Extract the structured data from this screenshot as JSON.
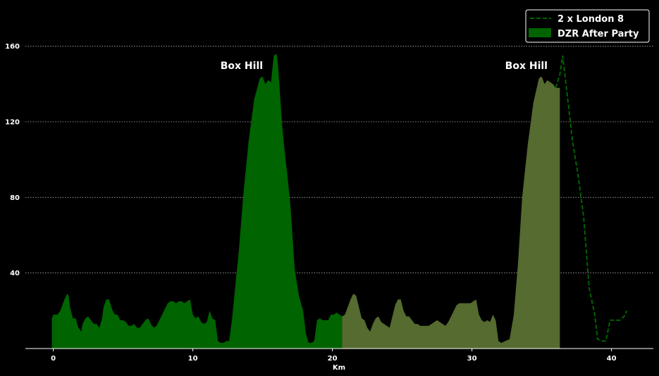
{
  "chart_data": {
    "type": "area",
    "title": "",
    "xlabel": "Km",
    "ylabel": "",
    "xlim": [
      -2,
      43
    ],
    "ylim": [
      0,
      180
    ],
    "x_ticks": [
      0,
      10,
      20,
      30,
      40
    ],
    "y_ticks": [
      40,
      80,
      120,
      160
    ],
    "grid": "horizontal-dotted",
    "legend_position": "top-right",
    "colors": {
      "background": "#000000",
      "text": "#ffffff",
      "grid": "#b0b0b0",
      "axis": "#ffffff",
      "london_line": "#006400",
      "after_party_fill": "#006400",
      "second_lap_fill": "#556b2f"
    },
    "annotations": [
      {
        "text": "Box Hill",
        "x": 13.5,
        "y": 148
      },
      {
        "text": "Box Hill",
        "x": 33.9,
        "y": 148
      }
    ],
    "series": [
      {
        "name": "2 x London 8",
        "style": "dashed-line",
        "x": [
          36.0,
          36.3,
          36.5,
          36.8,
          37.2,
          37.6,
          38.0,
          38.4,
          38.8,
          39.0,
          39.3,
          39.6,
          39.9,
          40.2,
          40.6,
          40.9,
          41.1
        ],
        "y": [
          138,
          145,
          155,
          136,
          110,
          92,
          70,
          32,
          18,
          5,
          4,
          4,
          15,
          15,
          15,
          17,
          20
        ]
      },
      {
        "name": "DZR After Party",
        "style": "filled-area",
        "x": [
          -0.1,
          0.0,
          0.3,
          0.5,
          0.8,
          1.0,
          1.1,
          1.2,
          1.4,
          1.6,
          1.8,
          2.0,
          2.1,
          2.3,
          2.5,
          2.7,
          2.9,
          3.1,
          3.3,
          3.5,
          3.6,
          3.8,
          4.0,
          4.2,
          4.4,
          4.6,
          4.8,
          5.0,
          5.2,
          5.4,
          5.6,
          5.8,
          6.0,
          6.2,
          6.4,
          6.6,
          6.8,
          7.0,
          7.2,
          7.4,
          7.6,
          7.8,
          8.0,
          8.2,
          8.4,
          8.6,
          8.8,
          9.0,
          9.2,
          9.4,
          9.6,
          9.8,
          10.0,
          10.2,
          10.4,
          10.6,
          10.8,
          11.0,
          11.2,
          11.4,
          11.6,
          11.8,
          12.0,
          12.2,
          12.4,
          12.6,
          12.8,
          13.0,
          13.3,
          13.6,
          14.0,
          14.4,
          14.8,
          15.0,
          15.2,
          15.4,
          15.6,
          15.8,
          16.0,
          16.1,
          16.2,
          16.4,
          16.6,
          16.8,
          17.0,
          17.3,
          17.6,
          17.9,
          18.1,
          18.3,
          18.5,
          18.7,
          18.9,
          19.1,
          19.3,
          19.5,
          19.7,
          19.9,
          20.1,
          20.3,
          20.5,
          20.7
        ],
        "y": [
          16,
          18,
          18,
          20,
          26,
          29,
          28,
          22,
          16,
          16,
          11,
          9,
          13,
          16,
          17,
          15,
          13,
          13,
          11,
          16,
          22,
          26,
          26,
          21,
          18,
          18,
          15,
          15,
          14,
          12,
          12,
          13,
          11,
          11,
          13,
          15,
          16,
          13,
          11,
          12,
          15,
          18,
          21,
          24,
          25,
          25,
          24,
          25,
          25,
          24,
          25,
          26,
          18,
          16,
          17,
          14,
          13,
          14,
          20,
          16,
          15,
          4,
          3,
          3,
          4,
          4,
          15,
          30,
          52,
          80,
          110,
          132,
          143,
          144,
          140,
          142,
          141,
          155,
          156,
          150,
          140,
          118,
          103,
          90,
          75,
          42,
          28,
          20,
          8,
          3,
          3,
          4,
          15,
          16,
          15,
          15,
          15,
          18,
          18,
          19,
          18,
          17
        ]
      },
      {
        "name": "",
        "style": "filled-area",
        "x": [
          20.7,
          20.9,
          21.1,
          21.3,
          21.5,
          21.7,
          21.9,
          22.1,
          22.3,
          22.5,
          22.7,
          22.9,
          23.1,
          23.3,
          23.5,
          23.7,
          23.9,
          24.1,
          24.3,
          24.5,
          24.7,
          24.9,
          25.1,
          25.3,
          25.5,
          25.7,
          25.9,
          26.1,
          26.3,
          26.5,
          26.7,
          26.9,
          27.1,
          27.3,
          27.5,
          27.7,
          27.9,
          28.1,
          28.3,
          28.5,
          28.7,
          28.9,
          29.1,
          29.3,
          29.5,
          29.7,
          29.9,
          30.1,
          30.3,
          30.5,
          30.7,
          30.9,
          31.1,
          31.3,
          31.5,
          31.7,
          31.9,
          32.1,
          32.4,
          32.7,
          33.0,
          33.3,
          33.6,
          34.0,
          34.4,
          34.8,
          35.0,
          35.2,
          35.4,
          35.6,
          35.8,
          36.0,
          36.2,
          36.3
        ],
        "y": [
          17,
          18,
          22,
          26,
          29,
          28,
          22,
          16,
          15,
          11,
          9,
          13,
          16,
          17,
          14,
          13,
          12,
          11,
          17,
          23,
          26,
          26,
          20,
          17,
          17,
          15,
          13,
          13,
          12,
          12,
          12,
          12,
          13,
          14,
          15,
          14,
          13,
          12,
          14,
          17,
          20,
          23,
          24,
          24,
          24,
          24,
          24,
          25,
          26,
          18,
          15,
          14,
          15,
          14,
          18,
          15,
          4,
          3,
          4,
          5,
          18,
          45,
          80,
          108,
          130,
          143,
          144,
          140,
          142,
          141,
          140,
          138,
          138,
          138
        ]
      }
    ]
  }
}
